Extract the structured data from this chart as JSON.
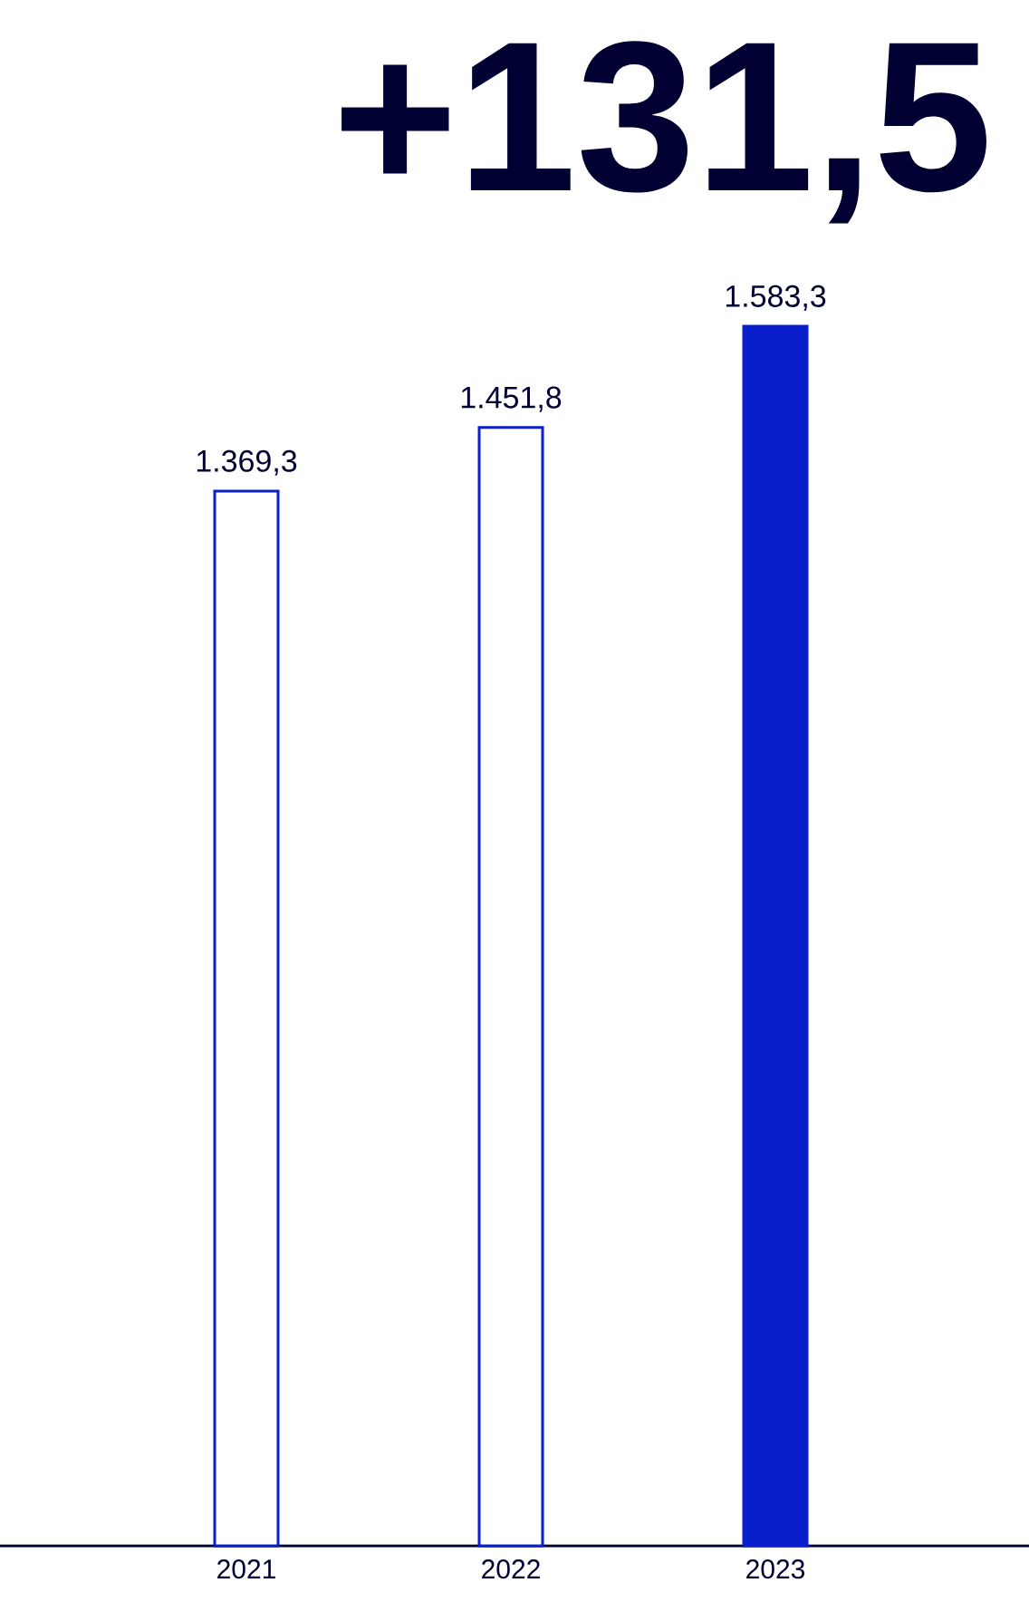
{
  "chart_data": {
    "type": "bar",
    "title": "+131,5",
    "categories": [
      "2021",
      "2022",
      "2023"
    ],
    "values": [
      1369.3,
      1451.8,
      1583.3
    ],
    "value_labels": [
      "1.369,3",
      "1.451,8",
      "1.583,3"
    ],
    "colors": [
      "#ffffff",
      "#ffffff",
      "#0a1ecc"
    ],
    "color": "#0a1ecc"
  }
}
